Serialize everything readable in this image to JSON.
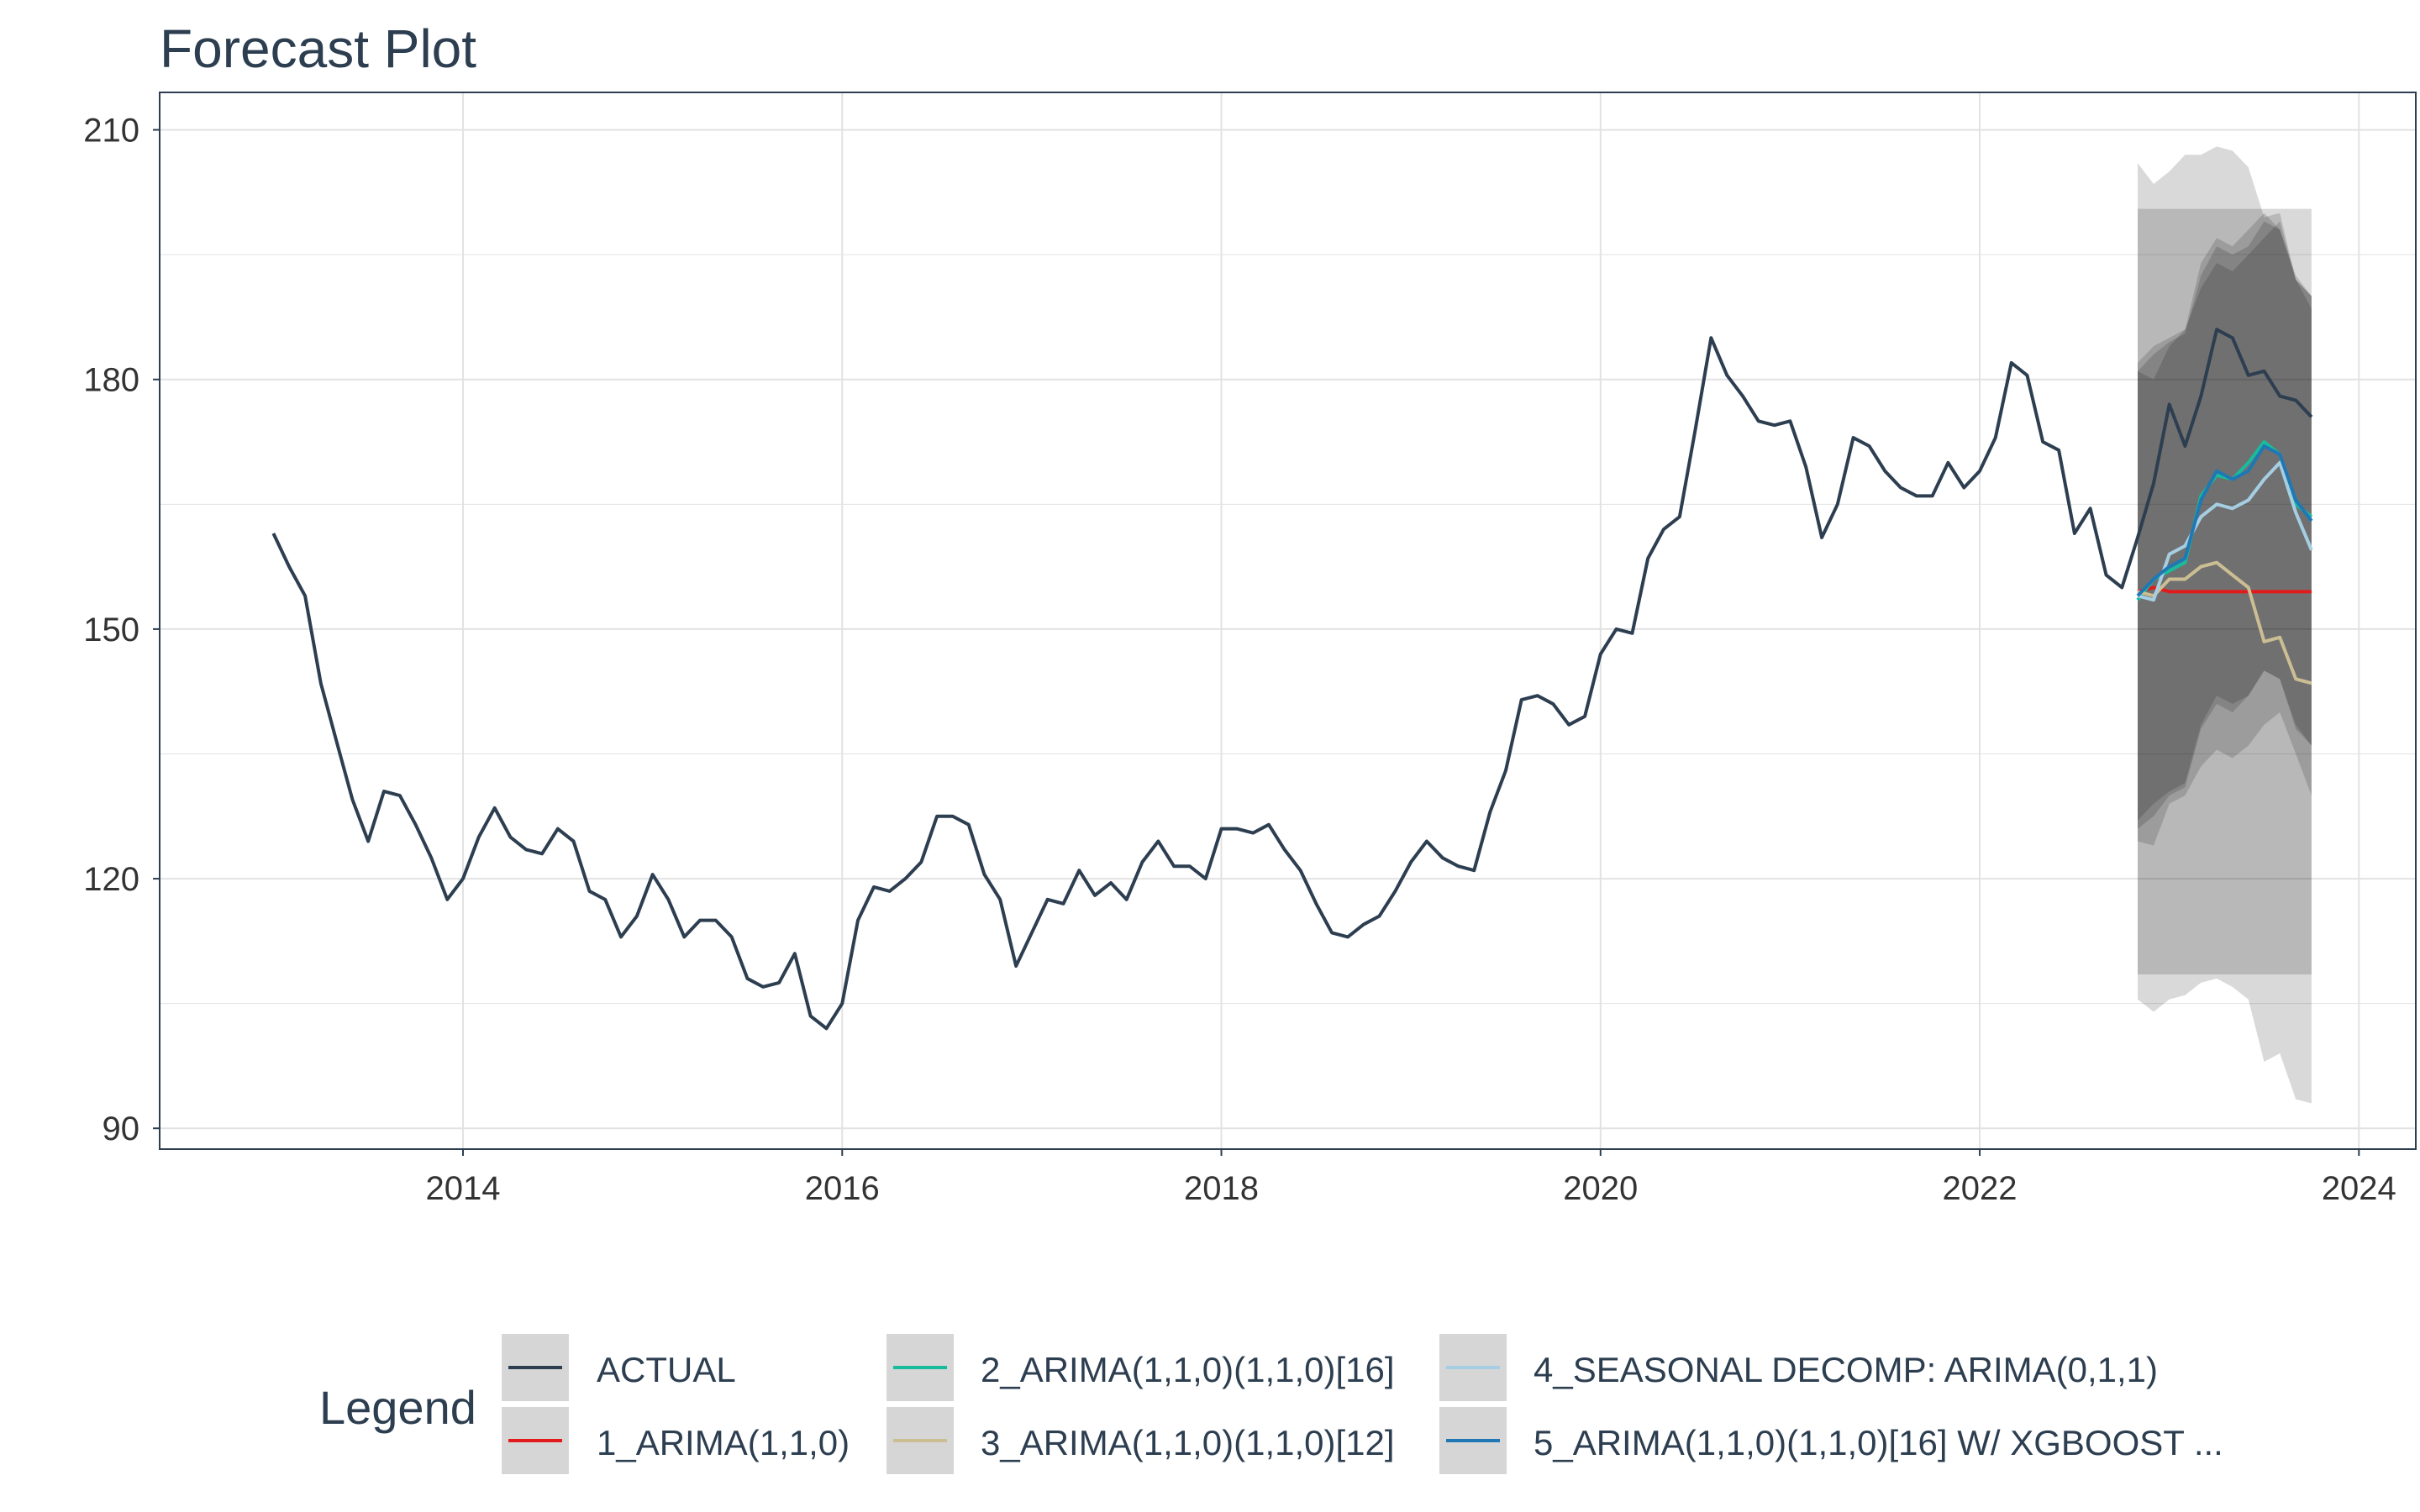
{
  "chart_data": {
    "type": "line",
    "title": "Forecast Plot",
    "xlabel": "",
    "ylabel": "",
    "xlim": [
      2012.4,
      2024.3
    ],
    "ylim": [
      87.5,
      214.5
    ],
    "x_ticks": [
      2014,
      2016,
      2018,
      2020,
      2022,
      2024
    ],
    "x_tick_labels": [
      "2014",
      "2016",
      "2018",
      "2020",
      "2022",
      "2024"
    ],
    "y_ticks": [
      90,
      120,
      150,
      180,
      210
    ],
    "y_tick_labels": [
      "90",
      "120",
      "150",
      "180",
      "210"
    ],
    "grid": true,
    "legend": {
      "title": "Legend",
      "placement": "bottom",
      "entries": [
        "ACTUAL",
        "1_ARIMA(1,1,0)",
        "2_ARIMA(1,1,0)(1,1,0)[16]",
        "3_ARIMA(1,1,0)(1,1,0)[12]",
        "4_SEASONAL DECOMP: ARIMA(0,1,1)",
        "5_ARIMA(1,1,0)(1,1,0)[16] W/ XGBOOST ..."
      ]
    },
    "colors": {
      "ACTUAL": "#2c3e50",
      "1_ARIMA(1,1,0)": "#e31a1c",
      "2_ARIMA(1,1,0)(1,1,0)[16]": "#18bc9c",
      "3_ARIMA(1,1,0)(1,1,0)[12]": "#ccbe93",
      "4_SEASONAL DECOMP: ARIMA(0,1,1)": "#a6cee3",
      "5_ARIMA(1,1,0)(1,1,0)[16] W/ XGBOOST ...": "#1f78b4",
      "band_fill": "#000000",
      "grid": "#e2e2e2"
    },
    "series": [
      {
        "name": "ACTUAL",
        "x": [
          2013.0,
          2013.083,
          2013.167,
          2013.25,
          2013.333,
          2013.417,
          2013.5,
          2013.583,
          2013.667,
          2013.75,
          2013.833,
          2013.917,
          2014.0,
          2014.083,
          2014.167,
          2014.25,
          2014.333,
          2014.417,
          2014.5,
          2014.583,
          2014.667,
          2014.75,
          2014.833,
          2014.917,
          2015.0,
          2015.083,
          2015.167,
          2015.25,
          2015.333,
          2015.417,
          2015.5,
          2015.583,
          2015.667,
          2015.75,
          2015.833,
          2015.917,
          2016.0,
          2016.083,
          2016.167,
          2016.25,
          2016.333,
          2016.417,
          2016.5,
          2016.583,
          2016.667,
          2016.75,
          2016.833,
          2016.917,
          2017.0,
          2017.083,
          2017.167,
          2017.25,
          2017.333,
          2017.417,
          2017.5,
          2017.583,
          2017.667,
          2017.75,
          2017.833,
          2017.917,
          2018.0,
          2018.083,
          2018.167,
          2018.25,
          2018.333,
          2018.417,
          2018.5,
          2018.583,
          2018.667,
          2018.75,
          2018.833,
          2018.917,
          2019.0,
          2019.083,
          2019.167,
          2019.25,
          2019.333,
          2019.417,
          2019.5,
          2019.583,
          2019.667,
          2019.75,
          2019.833,
          2019.917,
          2020.0,
          2020.083,
          2020.167,
          2020.25,
          2020.333,
          2020.417,
          2020.5,
          2020.583,
          2020.667,
          2020.75,
          2020.833,
          2020.917,
          2021.0,
          2021.083,
          2021.167,
          2021.25,
          2021.333,
          2021.417,
          2021.5,
          2021.583,
          2021.667,
          2021.75,
          2021.833,
          2021.917,
          2022.0,
          2022.083,
          2022.167,
          2022.25,
          2022.333,
          2022.417,
          2022.5,
          2022.583,
          2022.667,
          2022.75,
          2022.833,
          2022.917,
          2023.0,
          2023.083,
          2023.167,
          2023.25,
          2023.333,
          2023.417,
          2023.5,
          2023.583,
          2023.667,
          2023.75
        ],
        "values": [
          161.5,
          157.5,
          154,
          143.5,
          136.5,
          129.5,
          124.5,
          130.5,
          130,
          126.5,
          122.5,
          117.5,
          120,
          125,
          128.5,
          125,
          123.5,
          123,
          126,
          124.5,
          118.5,
          117.5,
          113,
          115.5,
          120.5,
          117.5,
          113,
          115,
          115,
          113,
          108,
          107,
          107.5,
          111,
          103.5,
          102,
          105,
          115,
          119,
          118.5,
          120,
          122,
          127.5,
          127.5,
          126.5,
          120.5,
          117.5,
          109.5,
          113.5,
          117.5,
          117,
          121,
          118,
          119.5,
          117.5,
          122,
          124.5,
          121.5,
          121.5,
          120,
          126,
          126,
          125.5,
          126.5,
          123.5,
          121,
          117,
          113.5,
          113,
          114.5,
          115.5,
          118.5,
          122,
          124.5,
          122.5,
          121.5,
          121,
          128,
          133,
          141.5,
          142,
          141,
          138.5,
          139.5,
          147,
          150,
          149.5,
          158.5,
          162,
          163.5,
          174,
          185,
          180.5,
          178,
          175,
          174.5,
          175,
          169.5,
          161,
          165,
          173,
          172,
          169,
          167,
          166,
          166,
          170,
          167,
          169,
          173,
          182,
          180.5,
          172.5,
          171.5,
          161.5,
          164.5,
          156.5,
          155,
          161,
          167.5,
          177,
          172,
          178,
          186,
          185,
          180.5,
          181,
          178,
          177.5,
          175.5
        ]
      },
      {
        "name": "1_ARIMA(1,1,0)",
        "x": [
          2022.833,
          2022.917,
          2023.0,
          2023.083,
          2023.167,
          2023.25,
          2023.333,
          2023.417,
          2023.5,
          2023.583,
          2023.667,
          2023.75
        ],
        "values": [
          154.5,
          155,
          154.5,
          154.5,
          154.5,
          154.5,
          154.5,
          154.5,
          154.5,
          154.5,
          154.5,
          154.5
        ]
      },
      {
        "name": "2_ARIMA(1,1,0)(1,1,0)[16]",
        "x": [
          2022.833,
          2022.917,
          2023.0,
          2023.083,
          2023.167,
          2023.25,
          2023.333,
          2023.417,
          2023.5,
          2023.583,
          2023.667,
          2023.75
        ],
        "values": [
          153.5,
          156,
          157,
          158,
          166,
          168.5,
          168,
          170,
          172.5,
          171,
          165,
          163.5
        ]
      },
      {
        "name": "3_ARIMA(1,1,0)(1,1,0)[12]",
        "x": [
          2022.833,
          2022.917,
          2023.0,
          2023.083,
          2023.167,
          2023.25,
          2023.333,
          2023.417,
          2023.5,
          2023.583,
          2023.667,
          2023.75
        ],
        "values": [
          154.5,
          154,
          156,
          156,
          157.5,
          158,
          156.5,
          155,
          148.5,
          149,
          144,
          143.5
        ]
      },
      {
        "name": "4_SEASONAL DECOMP: ARIMA(0,1,1)",
        "x": [
          2022.833,
          2022.917,
          2023.0,
          2023.083,
          2023.167,
          2023.25,
          2023.333,
          2023.417,
          2023.5,
          2023.583,
          2023.667,
          2023.75
        ],
        "values": [
          154,
          153.5,
          159,
          160,
          163.5,
          165,
          164.5,
          165.5,
          168,
          170,
          164,
          159.5
        ]
      },
      {
        "name": "5_ARIMA(1,1,0)(1,1,0)[16] W/ XGBOOST ...",
        "x": [
          2022.833,
          2022.917,
          2023.0,
          2023.083,
          2023.167,
          2023.25,
          2023.333,
          2023.417,
          2023.5,
          2023.583,
          2023.667,
          2023.75
        ],
        "values": [
          154,
          156,
          157.5,
          158.5,
          165.5,
          169,
          168,
          169,
          172,
          171,
          165.5,
          163
        ]
      }
    ],
    "intervals": [
      {
        "x": [
          2022.833,
          2022.917,
          2023.0,
          2023.083,
          2023.167,
          2023.25,
          2023.333,
          2023.417,
          2023.5,
          2023.583,
          2023.667,
          2023.75
        ],
        "lower": [
          108.5,
          108.5,
          108.5,
          108.5,
          108.5,
          108.5,
          108.5,
          108.5,
          108.5,
          108.5,
          108.5,
          108.5
        ],
        "upper": [
          200.5,
          200.5,
          200.5,
          200.5,
          200.5,
          200.5,
          200.5,
          200.5,
          200.5,
          200.5,
          200.5,
          200.5
        ]
      },
      {
        "x": [
          2022.833,
          2022.917,
          2023.0,
          2023.083,
          2023.167,
          2023.25,
          2023.333,
          2023.417,
          2023.5,
          2023.583,
          2023.667,
          2023.75
        ],
        "lower": [
          105.5,
          104,
          105.5,
          106,
          107.5,
          108,
          107,
          105.5,
          98,
          99,
          93.5,
          93
        ],
        "upper": [
          206,
          203.5,
          205,
          207,
          207,
          208,
          207.5,
          205.5,
          199.5,
          200,
          192,
          190
        ]
      },
      {
        "x": [
          2022.833,
          2022.917,
          2023.0,
          2023.083,
          2023.167,
          2023.25,
          2023.333,
          2023.417,
          2023.5,
          2023.583,
          2023.667,
          2023.75
        ],
        "lower": [
          124.5,
          124,
          129,
          130,
          133.5,
          135.5,
          134.5,
          136,
          138.5,
          140,
          135,
          130
        ],
        "upper": [
          181,
          180,
          184,
          186,
          191,
          194,
          193,
          195,
          197,
          199,
          192,
          188.5
        ]
      },
      {
        "x": [
          2022.833,
          2022.917,
          2023.0,
          2023.083,
          2023.167,
          2023.25,
          2023.333,
          2023.417,
          2023.5,
          2023.583,
          2023.667,
          2023.75
        ],
        "lower": [
          126,
          127.5,
          130,
          131,
          138,
          141,
          140,
          142,
          145,
          144,
          138,
          136
        ],
        "upper": [
          182,
          184,
          185,
          186,
          194,
          197,
          196,
          198,
          200,
          198,
          192,
          190
        ]
      },
      {
        "x": [
          2022.833,
          2022.917,
          2023.0,
          2023.083,
          2023.167,
          2023.25,
          2023.333,
          2023.417,
          2023.5,
          2023.583,
          2023.667,
          2023.75
        ],
        "lower": [
          127,
          129,
          130.5,
          131.5,
          138.5,
          142,
          141,
          142,
          145,
          144,
          138.5,
          136
        ],
        "upper": [
          181,
          183,
          184.5,
          185.5,
          192.5,
          196,
          195,
          196,
          199,
          198,
          192.5,
          190
        ]
      }
    ]
  }
}
